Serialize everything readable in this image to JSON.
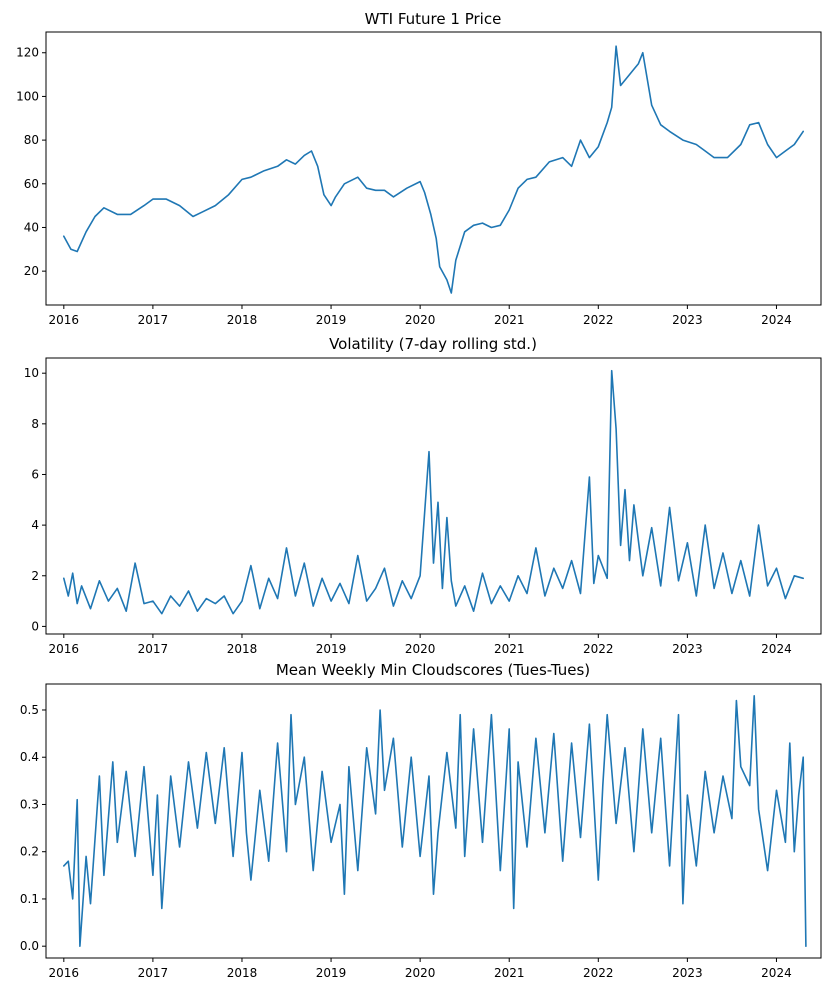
{
  "chart_data": [
    {
      "type": "line",
      "title": "WTI Future 1 Price",
      "xlabel": "",
      "ylabel": "",
      "x_ticks": [
        "2016",
        "2017",
        "2018",
        "2019",
        "2020",
        "2021",
        "2022",
        "2023",
        "2024"
      ],
      "xlim": [
        2015.8,
        2024.5
      ],
      "y_ticks": [
        20,
        40,
        60,
        80,
        100,
        120
      ],
      "ylim": [
        4.5,
        129.5
      ],
      "grid": false,
      "color": "#1f77b4",
      "series": [
        {
          "x": [
            2016.0,
            2016.08,
            2016.15,
            2016.25,
            2016.35,
            2016.45,
            2016.6,
            2016.75,
            2016.9,
            2017.0,
            2017.15,
            2017.3,
            2017.45,
            2017.55,
            2017.7,
            2017.85,
            2018.0,
            2018.1,
            2018.25,
            2018.4,
            2018.5,
            2018.6,
            2018.7,
            2018.78,
            2018.85,
            2018.92,
            2019.0,
            2019.05,
            2019.15,
            2019.3,
            2019.4,
            2019.5,
            2019.6,
            2019.7,
            2019.85,
            2020.0,
            2020.05,
            2020.12,
            2020.18,
            2020.22,
            2020.3,
            2020.35,
            2020.4,
            2020.5,
            2020.6,
            2020.7,
            2020.8,
            2020.9,
            2021.0,
            2021.1,
            2021.2,
            2021.3,
            2021.45,
            2021.6,
            2021.7,
            2021.8,
            2021.9,
            2022.0,
            2022.1,
            2022.15,
            2022.2,
            2022.25,
            2022.35,
            2022.45,
            2022.5,
            2022.6,
            2022.7,
            2022.8,
            2022.95,
            2023.1,
            2023.2,
            2023.3,
            2023.45,
            2023.6,
            2023.7,
            2023.8,
            2023.9,
            2024.0,
            2024.1,
            2024.2,
            2024.3
          ],
          "y": [
            36,
            30,
            29,
            38,
            45,
            49,
            46,
            46,
            50,
            53,
            53,
            50,
            45,
            47,
            50,
            55,
            62,
            63,
            66,
            68,
            71,
            69,
            73,
            75,
            68,
            55,
            50,
            54,
            60,
            63,
            58,
            57,
            57,
            54,
            58,
            61,
            56,
            46,
            35,
            22,
            16,
            10,
            25,
            38,
            41,
            42,
            40,
            41,
            48,
            58,
            62,
            63,
            70,
            72,
            68,
            80,
            72,
            77,
            88,
            95,
            123,
            105,
            110,
            115,
            120,
            96,
            87,
            84,
            80,
            78,
            75,
            72,
            72,
            78,
            87,
            88,
            78,
            72,
            75,
            78,
            84
          ]
        }
      ]
    },
    {
      "type": "line",
      "title": "Volatility (7-day rolling std.)",
      "xlabel": "",
      "ylabel": "",
      "x_ticks": [
        "2016",
        "2017",
        "2018",
        "2019",
        "2020",
        "2021",
        "2022",
        "2023",
        "2024"
      ],
      "xlim": [
        2015.8,
        2024.5
      ],
      "y_ticks": [
        0,
        2,
        4,
        6,
        8,
        10
      ],
      "ylim": [
        -0.3,
        10.6
      ],
      "grid": false,
      "color": "#1f77b4",
      "series": [
        {
          "x": [
            2016.0,
            2016.05,
            2016.1,
            2016.15,
            2016.2,
            2016.3,
            2016.4,
            2016.5,
            2016.6,
            2016.7,
            2016.8,
            2016.9,
            2017.0,
            2017.1,
            2017.2,
            2017.3,
            2017.4,
            2017.5,
            2017.6,
            2017.7,
            2017.8,
            2017.9,
            2018.0,
            2018.1,
            2018.2,
            2018.3,
            2018.4,
            2018.5,
            2018.6,
            2018.7,
            2018.8,
            2018.9,
            2019.0,
            2019.1,
            2019.2,
            2019.3,
            2019.4,
            2019.5,
            2019.6,
            2019.7,
            2019.8,
            2019.9,
            2020.0,
            2020.1,
            2020.15,
            2020.2,
            2020.25,
            2020.3,
            2020.35,
            2020.4,
            2020.5,
            2020.6,
            2020.7,
            2020.8,
            2020.9,
            2021.0,
            2021.1,
            2021.2,
            2021.3,
            2021.4,
            2021.5,
            2021.6,
            2021.7,
            2021.8,
            2021.9,
            2021.95,
            2022.0,
            2022.1,
            2022.15,
            2022.2,
            2022.25,
            2022.3,
            2022.35,
            2022.4,
            2022.5,
            2022.6,
            2022.7,
            2022.8,
            2022.9,
            2023.0,
            2023.1,
            2023.2,
            2023.3,
            2023.4,
            2023.5,
            2023.6,
            2023.7,
            2023.8,
            2023.9,
            2024.0,
            2024.1,
            2024.2,
            2024.3
          ],
          "y": [
            1.9,
            1.2,
            2.1,
            0.9,
            1.6,
            0.7,
            1.8,
            1.0,
            1.5,
            0.6,
            2.5,
            0.9,
            1.0,
            0.5,
            1.2,
            0.8,
            1.4,
            0.6,
            1.1,
            0.9,
            1.2,
            0.5,
            1.0,
            2.4,
            0.7,
            1.9,
            1.1,
            3.1,
            1.2,
            2.5,
            0.8,
            1.9,
            1.0,
            1.7,
            0.9,
            2.8,
            1.0,
            1.5,
            2.3,
            0.8,
            1.8,
            1.1,
            2.0,
            6.9,
            2.5,
            4.9,
            1.5,
            4.3,
            1.8,
            0.8,
            1.6,
            0.6,
            2.1,
            0.9,
            1.6,
            1.0,
            2.0,
            1.3,
            3.1,
            1.2,
            2.3,
            1.5,
            2.6,
            1.3,
            5.9,
            1.7,
            2.8,
            1.9,
            10.1,
            7.8,
            3.2,
            5.4,
            2.6,
            4.8,
            2.0,
            3.9,
            1.6,
            4.7,
            1.8,
            3.3,
            1.2,
            4.0,
            1.5,
            2.9,
            1.3,
            2.6,
            1.2,
            4.0,
            1.6,
            2.3,
            1.1,
            2.0,
            1.9
          ]
        }
      ]
    },
    {
      "type": "line",
      "title": "Mean Weekly Min Cloudscores (Tues-Tues)",
      "xlabel": "",
      "ylabel": "",
      "x_ticks": [
        "2016",
        "2017",
        "2018",
        "2019",
        "2020",
        "2021",
        "2022",
        "2023",
        "2024"
      ],
      "xlim": [
        2015.8,
        2024.5
      ],
      "y_ticks": [
        0.0,
        0.1,
        0.2,
        0.3,
        0.4,
        0.5
      ],
      "y_tick_labels": [
        "0.0",
        "0.1",
        "0.2",
        "0.3",
        "0.4",
        "0.5"
      ],
      "ylim": [
        -0.025,
        0.555
      ],
      "grid": false,
      "color": "#1f77b4",
      "series": [
        {
          "x": [
            2016.0,
            2016.05,
            2016.1,
            2016.15,
            2016.18,
            2016.25,
            2016.3,
            2016.4,
            2016.45,
            2016.55,
            2016.6,
            2016.7,
            2016.8,
            2016.9,
            2017.0,
            2017.05,
            2017.1,
            2017.2,
            2017.3,
            2017.4,
            2017.5,
            2017.6,
            2017.7,
            2017.8,
            2017.9,
            2018.0,
            2018.05,
            2018.1,
            2018.2,
            2018.3,
            2018.4,
            2018.5,
            2018.55,
            2018.6,
            2018.7,
            2018.8,
            2018.9,
            2019.0,
            2019.1,
            2019.15,
            2019.2,
            2019.3,
            2019.4,
            2019.5,
            2019.55,
            2019.6,
            2019.7,
            2019.8,
            2019.9,
            2020.0,
            2020.1,
            2020.15,
            2020.2,
            2020.3,
            2020.4,
            2020.45,
            2020.5,
            2020.6,
            2020.7,
            2020.8,
            2020.9,
            2021.0,
            2021.05,
            2021.1,
            2021.2,
            2021.3,
            2021.4,
            2021.5,
            2021.6,
            2021.7,
            2021.8,
            2021.9,
            2022.0,
            2022.05,
            2022.1,
            2022.2,
            2022.3,
            2022.4,
            2022.5,
            2022.6,
            2022.7,
            2022.8,
            2022.9,
            2022.95,
            2023.0,
            2023.1,
            2023.2,
            2023.3,
            2023.4,
            2023.5,
            2023.55,
            2023.6,
            2023.7,
            2023.75,
            2023.8,
            2023.9,
            2024.0,
            2024.1,
            2024.15,
            2024.2,
            2024.25,
            2024.3,
            2024.33
          ],
          "y": [
            0.17,
            0.18,
            0.1,
            0.31,
            0.0,
            0.19,
            0.09,
            0.36,
            0.15,
            0.39,
            0.22,
            0.37,
            0.19,
            0.38,
            0.15,
            0.32,
            0.08,
            0.36,
            0.21,
            0.39,
            0.25,
            0.41,
            0.26,
            0.42,
            0.19,
            0.41,
            0.24,
            0.14,
            0.33,
            0.18,
            0.43,
            0.2,
            0.49,
            0.3,
            0.4,
            0.16,
            0.37,
            0.22,
            0.3,
            0.11,
            0.38,
            0.16,
            0.42,
            0.28,
            0.5,
            0.33,
            0.44,
            0.21,
            0.4,
            0.19,
            0.36,
            0.11,
            0.24,
            0.41,
            0.25,
            0.49,
            0.19,
            0.46,
            0.22,
            0.49,
            0.16,
            0.46,
            0.08,
            0.39,
            0.21,
            0.44,
            0.24,
            0.45,
            0.18,
            0.43,
            0.23,
            0.47,
            0.14,
            0.34,
            0.49,
            0.26,
            0.42,
            0.2,
            0.46,
            0.24,
            0.44,
            0.17,
            0.49,
            0.09,
            0.32,
            0.17,
            0.37,
            0.24,
            0.36,
            0.27,
            0.52,
            0.38,
            0.34,
            0.53,
            0.29,
            0.16,
            0.33,
            0.22,
            0.43,
            0.2,
            0.32,
            0.4,
            0.0
          ]
        }
      ]
    }
  ]
}
